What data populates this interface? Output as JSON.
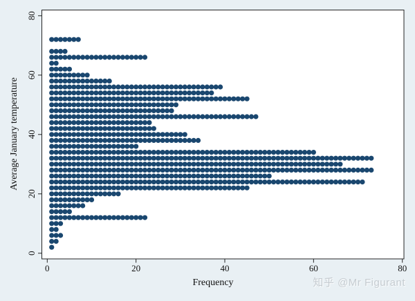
{
  "figure": {
    "background_color": "#e9f0f4",
    "plot_background_color": "#ffffff",
    "frame_color": "#242424",
    "watermark_text": "知乎 @Mr Figurant",
    "watermark_color": "#c6ccd1"
  },
  "chart_data": {
    "type": "scatter",
    "subtype": "stata-dotplot",
    "title": "",
    "xlabel": "Frequency",
    "ylabel": "Average January temperature",
    "xlim": [
      0,
      80
    ],
    "ylim": [
      0,
      80
    ],
    "x_ticks": [
      0,
      20,
      40,
      60,
      80
    ],
    "y_ticks": [
      0,
      20,
      40,
      60,
      80
    ],
    "grid": false,
    "legend": "none",
    "dot_color": "#1a476f",
    "rows": [
      {
        "temperature": 72,
        "frequency": 7
      },
      {
        "temperature": 68,
        "frequency": 4
      },
      {
        "temperature": 66,
        "frequency": 22
      },
      {
        "temperature": 64,
        "frequency": 2
      },
      {
        "temperature": 62,
        "frequency": 5
      },
      {
        "temperature": 60,
        "frequency": 9
      },
      {
        "temperature": 58,
        "frequency": 14
      },
      {
        "temperature": 56,
        "frequency": 39
      },
      {
        "temperature": 54,
        "frequency": 37
      },
      {
        "temperature": 52,
        "frequency": 45
      },
      {
        "temperature": 50,
        "frequency": 29
      },
      {
        "temperature": 48,
        "frequency": 28
      },
      {
        "temperature": 46,
        "frequency": 47
      },
      {
        "temperature": 44,
        "frequency": 23
      },
      {
        "temperature": 42,
        "frequency": 24
      },
      {
        "temperature": 40,
        "frequency": 31
      },
      {
        "temperature": 38,
        "frequency": 34
      },
      {
        "temperature": 36,
        "frequency": 20
      },
      {
        "temperature": 34,
        "frequency": 60
      },
      {
        "temperature": 32,
        "frequency": 73
      },
      {
        "temperature": 30,
        "frequency": 66
      },
      {
        "temperature": 28,
        "frequency": 73
      },
      {
        "temperature": 26,
        "frequency": 50
      },
      {
        "temperature": 24,
        "frequency": 71
      },
      {
        "temperature": 22,
        "frequency": 45
      },
      {
        "temperature": 20,
        "frequency": 16
      },
      {
        "temperature": 18,
        "frequency": 10
      },
      {
        "temperature": 16,
        "frequency": 8
      },
      {
        "temperature": 14,
        "frequency": 5
      },
      {
        "temperature": 12,
        "frequency": 22
      },
      {
        "temperature": 10,
        "frequency": 3
      },
      {
        "temperature": 8,
        "frequency": 2
      },
      {
        "temperature": 6,
        "frequency": 3
      },
      {
        "temperature": 4,
        "frequency": 2
      },
      {
        "temperature": 2,
        "frequency": 1
      }
    ]
  }
}
